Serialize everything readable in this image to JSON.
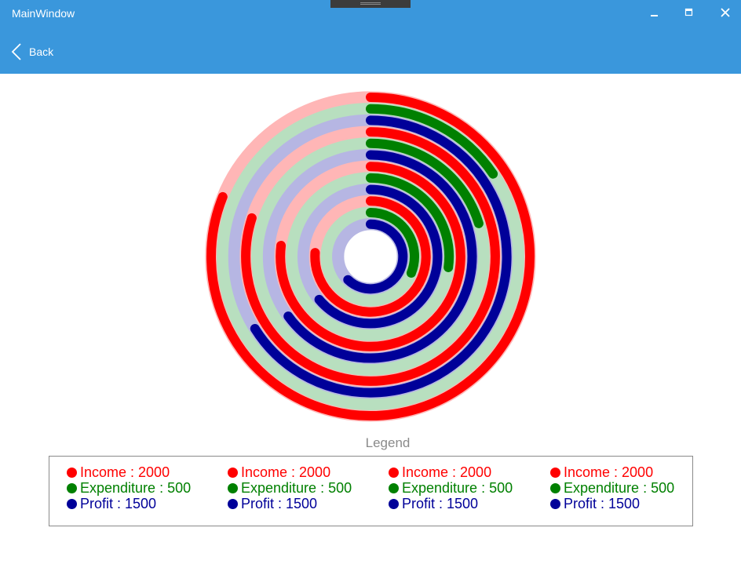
{
  "window": {
    "title": "MainWindow",
    "back_label": "Back",
    "bar_color": "#3a97dc"
  },
  "chart_data": {
    "type": "radial-bar",
    "series": [
      {
        "name": "Income",
        "value": 2000,
        "color": "#ff0000",
        "track": "#ffb6b6"
      },
      {
        "name": "Expenditure",
        "value": 500,
        "color": "#008000",
        "track": "#b8dfbf"
      },
      {
        "name": "Profit",
        "value": 1500,
        "color": "#000099",
        "track": "#b6b6e3"
      }
    ],
    "groups": 4,
    "sweep_deg": [
      292,
      56,
      238,
      288,
      73,
      234,
      277,
      98,
      230,
      274,
      112,
      224
    ],
    "legend_title": "Legend",
    "legend": [
      [
        {
          "label": "Income : 2000",
          "color": "#ff0000"
        },
        {
          "label": "Expenditure : 500",
          "color": "#008000"
        },
        {
          "label": "Profit : 1500",
          "color": "#000099"
        }
      ],
      [
        {
          "label": "Income : 2000",
          "color": "#ff0000"
        },
        {
          "label": "Expenditure : 500",
          "color": "#008000"
        },
        {
          "label": "Profit : 1500",
          "color": "#000099"
        }
      ],
      [
        {
          "label": "Income : 2000",
          "color": "#ff0000"
        },
        {
          "label": "Expenditure : 500",
          "color": "#008000"
        },
        {
          "label": "Profit : 1500",
          "color": "#000099"
        }
      ],
      [
        {
          "label": "Income : 2000",
          "color": "#ff0000"
        },
        {
          "label": "Expenditure : 500",
          "color": "#008000"
        },
        {
          "label": "Profit : 1500",
          "color": "#000099"
        }
      ]
    ]
  }
}
